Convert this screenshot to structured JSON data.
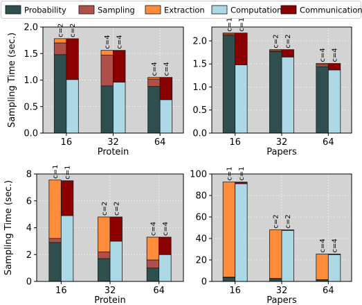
{
  "legend": [
    {
      "name": "Probability",
      "color": "#2f4f4f"
    },
    {
      "name": "Sampling",
      "color": "#b0504a"
    },
    {
      "name": "Extraction",
      "color": "#ff8c3a"
    },
    {
      "name": "Computation",
      "color": "#add8e6"
    },
    {
      "name": "Communication",
      "color": "#8b0000"
    }
  ],
  "chart_data": [
    {
      "type": "bar",
      "stacked": true,
      "grid": true,
      "categories": [
        "16",
        "32",
        "64"
      ],
      "xlabel": "Protein",
      "ylabel": "Sampling Time (sec.)",
      "ylim": [
        0,
        2.0
      ],
      "yticks": [
        0.0,
        0.5,
        1.0,
        1.5,
        2.0
      ],
      "ytick_labels": [
        "0.0",
        "0.5",
        "1.0",
        "1.5",
        "2.0"
      ],
      "bars": [
        {
          "category": "16",
          "position": "left",
          "label": "c=2",
          "segments": {
            "Probability": 1.48,
            "Sampling": 0.22,
            "Extraction": 0.08
          }
        },
        {
          "category": "16",
          "position": "right",
          "label": "c=2",
          "segments": {
            "Computation": 1.01,
            "Communication": 0.77
          }
        },
        {
          "category": "32",
          "position": "left",
          "label": "c=4",
          "segments": {
            "Probability": 0.89,
            "Sampling": 0.58,
            "Extraction": 0.09
          }
        },
        {
          "category": "32",
          "position": "right",
          "label": "c=4",
          "segments": {
            "Computation": 0.96,
            "Communication": 0.6
          }
        },
        {
          "category": "64",
          "position": "left",
          "label": "c=4",
          "segments": {
            "Probability": 0.88,
            "Sampling": 0.14,
            "Extraction": 0.03
          }
        },
        {
          "category": "64",
          "position": "right",
          "label": "c=4",
          "segments": {
            "Computation": 0.63,
            "Communication": 0.42
          }
        }
      ]
    },
    {
      "type": "bar",
      "stacked": true,
      "grid": true,
      "categories": [
        "16",
        "32",
        "64"
      ],
      "xlabel": "Papers",
      "ylabel": "",
      "ylim": [
        0,
        2.3
      ],
      "yticks": [
        0.0,
        0.5,
        1.0,
        1.5,
        2.0
      ],
      "ytick_labels": [
        "0.0",
        "0.5",
        "1.0",
        "1.5",
        "2.0"
      ],
      "bars": [
        {
          "category": "16",
          "position": "left",
          "label": "c=1",
          "segments": {
            "Probability": 2.12,
            "Sampling": 0.03,
            "Extraction": 0.02
          }
        },
        {
          "category": "16",
          "position": "right",
          "label": "c=1",
          "segments": {
            "Computation": 1.48,
            "Communication": 0.69
          }
        },
        {
          "category": "32",
          "position": "left",
          "label": "c=2",
          "segments": {
            "Probability": 1.77,
            "Sampling": 0.02,
            "Extraction": 0.02
          }
        },
        {
          "category": "32",
          "position": "right",
          "label": "c=2",
          "segments": {
            "Computation": 1.65,
            "Communication": 0.16
          }
        },
        {
          "category": "64",
          "position": "left",
          "label": "c=4",
          "segments": {
            "Probability": 1.44,
            "Sampling": 0.05,
            "Extraction": 0.02
          }
        },
        {
          "category": "64",
          "position": "right",
          "label": "c=4",
          "segments": {
            "Computation": 1.37,
            "Communication": 0.14
          }
        }
      ]
    },
    {
      "type": "bar",
      "stacked": true,
      "grid": true,
      "categories": [
        "16",
        "32",
        "64"
      ],
      "xlabel": "Protein",
      "ylabel": "Sampling Time (sec.)",
      "ylim": [
        0,
        8
      ],
      "yticks": [
        0,
        2,
        4,
        6,
        8
      ],
      "ytick_labels": [
        "0",
        "2",
        "4",
        "6",
        "8"
      ],
      "bars": [
        {
          "category": "16",
          "position": "left",
          "label": "c=1",
          "segments": {
            "Probability": 2.9,
            "Sampling": 0.3,
            "Extraction": 4.35
          }
        },
        {
          "category": "16",
          "position": "right",
          "label": "c=1",
          "segments": {
            "Computation": 4.9,
            "Communication": 2.6
          }
        },
        {
          "category": "32",
          "position": "left",
          "label": "c=2",
          "segments": {
            "Probability": 1.7,
            "Sampling": 0.5,
            "Extraction": 2.6
          }
        },
        {
          "category": "32",
          "position": "right",
          "label": "c=2",
          "segments": {
            "Computation": 3.0,
            "Communication": 1.8
          }
        },
        {
          "category": "64",
          "position": "left",
          "label": "c=4",
          "segments": {
            "Probability": 1.0,
            "Sampling": 0.6,
            "Extraction": 1.7
          }
        },
        {
          "category": "64",
          "position": "right",
          "label": "c=4",
          "segments": {
            "Computation": 2.0,
            "Communication": 1.3
          }
        }
      ]
    },
    {
      "type": "bar",
      "stacked": true,
      "grid": true,
      "categories": [
        "16",
        "32",
        "64"
      ],
      "xlabel": "Papers",
      "ylabel": "",
      "ylim": [
        0,
        100
      ],
      "yticks": [
        0,
        20,
        40,
        60,
        80,
        100
      ],
      "ytick_labels": [
        "0",
        "20",
        "40",
        "60",
        "80",
        "100"
      ],
      "bars": [
        {
          "category": "16",
          "position": "left",
          "label": "c=1",
          "segments": {
            "Probability": 3.5,
            "Sampling": 0.5,
            "Extraction": 88.5
          }
        },
        {
          "category": "16",
          "position": "right",
          "label": "c=1",
          "segments": {
            "Computation": 91.0,
            "Communication": 1.5
          }
        },
        {
          "category": "32",
          "position": "left",
          "label": "c=2",
          "segments": {
            "Probability": 2.5,
            "Sampling": 0.3,
            "Extraction": 45.2
          }
        },
        {
          "category": "32",
          "position": "right",
          "label": "c=2",
          "segments": {
            "Computation": 47.5,
            "Communication": 0.5
          }
        },
        {
          "category": "64",
          "position": "left",
          "label": "c=4",
          "segments": {
            "Probability": 1.5,
            "Sampling": 0.2,
            "Extraction": 23.8
          }
        },
        {
          "category": "64",
          "position": "right",
          "label": "c=4",
          "segments": {
            "Computation": 25.0,
            "Communication": 0.5
          }
        }
      ]
    }
  ]
}
